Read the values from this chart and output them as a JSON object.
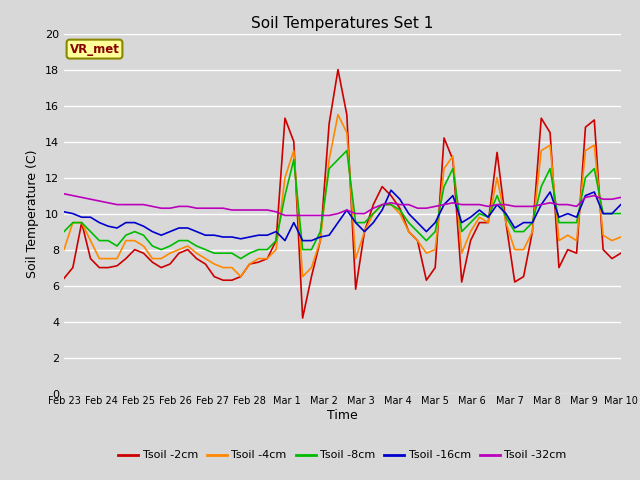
{
  "title": "Soil Temperatures Set 1",
  "xlabel": "Time",
  "ylabel": "Soil Temperature (C)",
  "ylim": [
    0,
    20
  ],
  "background_color": "#d8d8d8",
  "plot_bg_color": "#d8d8d8",
  "annotation_text": "VR_met",
  "annotation_box_color": "#ffff99",
  "annotation_border_color": "#888800",
  "annotation_text_color": "#880000",
  "x_tick_labels": [
    "Feb 23",
    "Feb 24",
    "Feb 25",
    "Feb 26",
    "Feb 27",
    "Feb 28",
    "Mar 1",
    "Mar 2",
    "Mar 3",
    "Mar 4",
    "Mar 5",
    "Mar 6",
    "Mar 7",
    "Mar 8",
    "Mar 9",
    "Mar 10"
  ],
  "series_colors": [
    "#cc0000",
    "#ff8800",
    "#00bb00",
    "#0000cc",
    "#bb00bb"
  ],
  "series_labels": [
    "Tsoil -2cm",
    "Tsoil -4cm",
    "Tsoil -8cm",
    "Tsoil -16cm",
    "Tsoil -32cm"
  ],
  "tsoil_2cm": [
    6.4,
    7.0,
    9.5,
    7.5,
    7.0,
    7.0,
    7.1,
    7.5,
    8.0,
    7.8,
    7.3,
    7.0,
    7.2,
    7.8,
    8.0,
    7.5,
    7.2,
    6.5,
    6.3,
    6.3,
    6.5,
    7.2,
    7.3,
    7.5,
    8.5,
    15.3,
    14.0,
    4.2,
    6.5,
    8.5,
    15.0,
    18.0,
    15.5,
    5.8,
    9.0,
    10.5,
    11.5,
    11.0,
    10.3,
    9.0,
    8.5,
    6.3,
    7.0,
    14.2,
    13.0,
    6.2,
    8.5,
    9.5,
    9.5,
    13.4,
    9.5,
    6.2,
    6.5,
    9.0,
    15.3,
    14.5,
    7.0,
    8.0,
    7.8,
    14.8,
    15.2,
    8.0,
    7.5,
    7.8
  ],
  "tsoil_4cm": [
    8.0,
    9.5,
    9.5,
    8.5,
    7.5,
    7.5,
    7.5,
    8.5,
    8.5,
    8.2,
    7.5,
    7.5,
    7.8,
    8.0,
    8.2,
    7.8,
    7.5,
    7.2,
    7.0,
    7.0,
    6.5,
    7.2,
    7.5,
    7.5,
    8.0,
    12.0,
    13.5,
    6.5,
    7.0,
    8.5,
    13.0,
    15.5,
    14.5,
    7.5,
    9.0,
    10.0,
    10.5,
    10.5,
    10.0,
    9.0,
    8.5,
    7.8,
    8.0,
    12.5,
    13.2,
    7.8,
    9.0,
    9.8,
    9.5,
    12.0,
    9.5,
    8.0,
    8.0,
    9.0,
    13.5,
    13.8,
    8.5,
    8.8,
    8.5,
    13.5,
    13.8,
    8.8,
    8.5,
    8.7
  ],
  "tsoil_8cm": [
    9.0,
    9.5,
    9.5,
    9.0,
    8.5,
    8.5,
    8.2,
    8.8,
    9.0,
    8.8,
    8.2,
    8.0,
    8.2,
    8.5,
    8.5,
    8.2,
    8.0,
    7.8,
    7.8,
    7.8,
    7.5,
    7.8,
    8.0,
    8.0,
    8.5,
    11.0,
    13.0,
    8.0,
    8.0,
    9.0,
    12.5,
    13.0,
    13.5,
    9.5,
    9.5,
    10.0,
    10.5,
    10.5,
    10.2,
    9.5,
    9.0,
    8.5,
    9.0,
    11.5,
    12.5,
    9.0,
    9.5,
    10.0,
    9.8,
    11.0,
    9.8,
    9.0,
    9.0,
    9.5,
    11.5,
    12.5,
    9.5,
    9.5,
    9.5,
    12.0,
    12.5,
    10.0,
    10.0,
    10.0
  ],
  "tsoil_16cm": [
    10.1,
    10.0,
    9.8,
    9.8,
    9.5,
    9.3,
    9.2,
    9.5,
    9.5,
    9.3,
    9.0,
    8.8,
    9.0,
    9.2,
    9.2,
    9.0,
    8.8,
    8.8,
    8.7,
    8.7,
    8.6,
    8.7,
    8.8,
    8.8,
    9.0,
    8.5,
    9.5,
    8.5,
    8.5,
    8.7,
    8.8,
    9.5,
    10.2,
    9.5,
    9.0,
    9.5,
    10.2,
    11.3,
    10.8,
    10.0,
    9.5,
    9.0,
    9.5,
    10.5,
    11.0,
    9.5,
    9.8,
    10.2,
    9.8,
    10.5,
    10.0,
    9.2,
    9.5,
    9.5,
    10.5,
    11.2,
    9.8,
    10.0,
    9.8,
    11.0,
    11.2,
    10.0,
    10.0,
    10.5
  ],
  "tsoil_32cm": [
    11.1,
    11.0,
    10.9,
    10.8,
    10.7,
    10.6,
    10.5,
    10.5,
    10.5,
    10.5,
    10.4,
    10.3,
    10.3,
    10.4,
    10.4,
    10.3,
    10.3,
    10.3,
    10.3,
    10.2,
    10.2,
    10.2,
    10.2,
    10.2,
    10.1,
    9.9,
    9.9,
    9.9,
    9.9,
    9.9,
    9.9,
    10.0,
    10.2,
    10.0,
    10.0,
    10.3,
    10.5,
    10.6,
    10.5,
    10.5,
    10.3,
    10.3,
    10.4,
    10.5,
    10.6,
    10.5,
    10.5,
    10.5,
    10.4,
    10.5,
    10.5,
    10.4,
    10.4,
    10.4,
    10.5,
    10.6,
    10.5,
    10.5,
    10.4,
    10.9,
    11.0,
    10.8,
    10.8,
    10.9
  ]
}
